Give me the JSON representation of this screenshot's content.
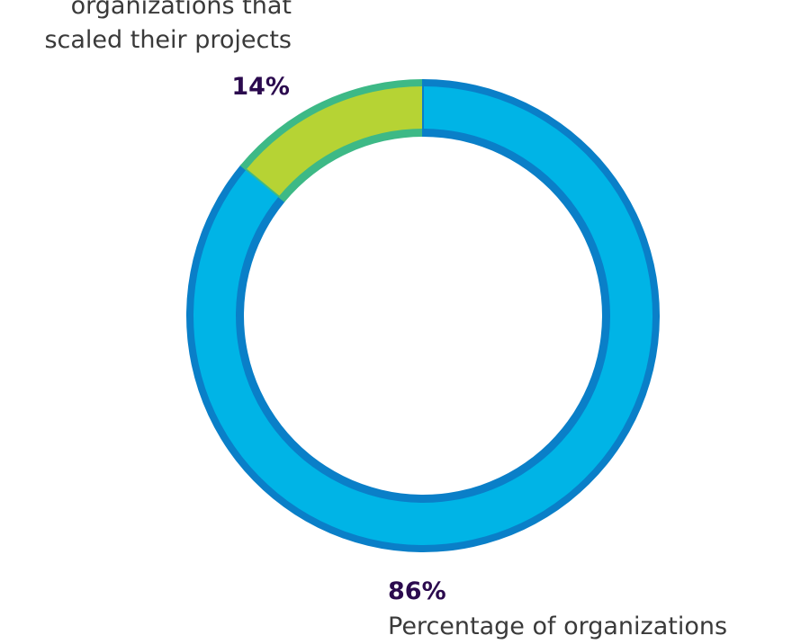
{
  "chart_data": {
    "type": "pie",
    "categories": [
      "organizations that scaled their projects",
      "Percentage of organizations"
    ],
    "values": [
      14,
      86
    ],
    "labels": [
      "14%",
      "86%"
    ],
    "annotations": {
      "top_lines": [
        "organizations that",
        "scaled their projects"
      ],
      "bottom_text": "Percentage of organizations"
    },
    "colors": {
      "slice_scaled": "#b6d334",
      "slice_scaled_border": "#3db986",
      "slice_rest": "#00b4e6",
      "slice_rest_border": "#0a7fc8"
    },
    "donut": true,
    "start_angle": "12 o'clock",
    "direction": "counterclockwise for the 14% slice"
  }
}
